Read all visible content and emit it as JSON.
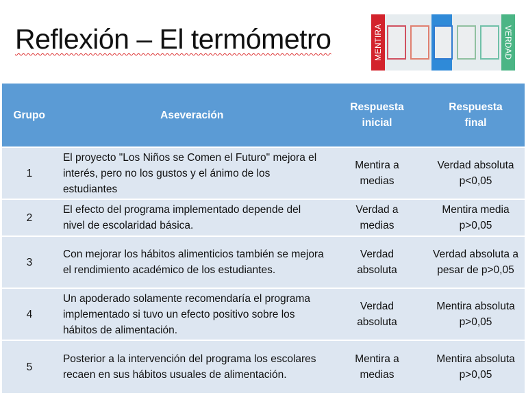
{
  "title": "Reflexión – El termómetro",
  "thermometer": {
    "left_label": "MENTIRA",
    "right_label": "VERDAD",
    "colors": {
      "mentira": "#d3232c",
      "verdad": "#4bb585",
      "center": "#2f8ad8"
    }
  },
  "table": {
    "headers": [
      "Grupo",
      "Aseveración",
      "Respuesta inicial",
      "Respuesta final"
    ],
    "header_color": "#5b9bd5",
    "rows": [
      {
        "grupo": "1",
        "aseveracion": "El proyecto \"Los Niños se Comen el Futuro\" mejora el interés, pero no los gustos y el ánimo de los estudiantes",
        "inicial": "Mentira a medias",
        "final": "Verdad absoluta p<0,05"
      },
      {
        "grupo": "2",
        "aseveracion": "El efecto del programa implementado depende del nivel de escolaridad básica.",
        "inicial": "Verdad a medias",
        "final": "Mentira media p>0,05"
      },
      {
        "grupo": "3",
        "aseveracion": "Con mejorar los hábitos alimenticios también se mejora el rendimiento académico de los estudiantes.",
        "inicial": "Verdad absoluta",
        "final": "Verdad absoluta a pesar de p>0,05"
      },
      {
        "grupo": "4",
        "aseveracion": "Un apoderado solamente recomendaría el programa implementado si tuvo un efecto positivo sobre los hábitos de alimentación.",
        "inicial": "Verdad absoluta",
        "final": "Mentira absoluta p>0,05"
      },
      {
        "grupo": "5",
        "aseveracion": "Posterior a la intervención del programa los escolares recaen en sus hábitos usuales de alimentación.",
        "inicial": "Mentira a medias",
        "final": "Mentira absoluta p>0,05"
      }
    ]
  }
}
